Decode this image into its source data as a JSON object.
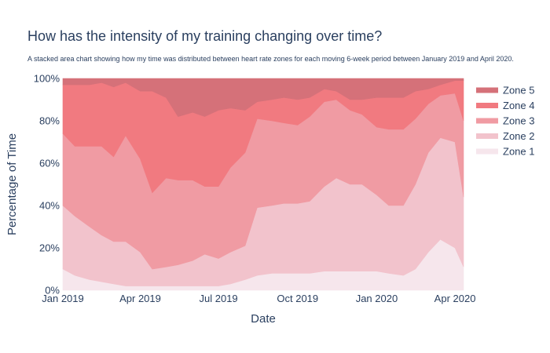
{
  "chart_data": {
    "type": "area",
    "stacked": true,
    "normalized_percent": true,
    "title": "How has the intensity of my training changing over time?",
    "subtitle": "A stacked area chart showing how my time was distributed between heart rate zones for each moving 6-week period between January 2019 and April 2020.",
    "xlabel": "Date",
    "ylabel": "Percentage of Time",
    "x_ticks": [
      "Jan 2019",
      "Apr 2019",
      "Jul 2019",
      "Oct 2019",
      "Jan 2020",
      "Apr 2020"
    ],
    "x_tick_dates": [
      "2019-01-01",
      "2019-04-01",
      "2019-07-01",
      "2019-10-01",
      "2020-01-01",
      "2020-04-01"
    ],
    "x_range": [
      "2019-01-01",
      "2020-04-11"
    ],
    "y_ticks": [
      "0%",
      "20%",
      "40%",
      "60%",
      "80%",
      "100%"
    ],
    "y_tick_values": [
      0,
      20,
      40,
      60,
      80,
      100
    ],
    "ylim": [
      0,
      100
    ],
    "legend_position": "right",
    "x": [
      "2019-01-01",
      "2019-01-15",
      "2019-02-01",
      "2019-02-15",
      "2019-03-01",
      "2019-03-15",
      "2019-04-01",
      "2019-04-15",
      "2019-05-01",
      "2019-05-15",
      "2019-06-01",
      "2019-06-15",
      "2019-07-01",
      "2019-07-15",
      "2019-08-01",
      "2019-08-15",
      "2019-09-01",
      "2019-09-15",
      "2019-10-01",
      "2019-10-15",
      "2019-11-01",
      "2019-11-15",
      "2019-12-01",
      "2019-12-15",
      "2020-01-01",
      "2020-01-15",
      "2020-02-01",
      "2020-02-15",
      "2020-03-01",
      "2020-03-15",
      "2020-04-01",
      "2020-04-11"
    ],
    "series": [
      {
        "name": "Zone 1",
        "color": "#f6e6ec",
        "values": [
          10,
          7,
          5,
          4,
          3,
          2,
          2,
          2,
          2,
          2,
          2,
          2,
          2,
          3,
          5,
          7,
          8,
          8,
          8,
          8,
          9,
          9,
          9,
          9,
          9,
          8,
          7,
          10,
          18,
          24,
          20,
          11
        ]
      },
      {
        "name": "Zone 2",
        "color": "#f2c3cc",
        "values": [
          30,
          28,
          25,
          22,
          20,
          21,
          16,
          8,
          9,
          10,
          12,
          15,
          13,
          15,
          16,
          32,
          32,
          33,
          33,
          34,
          40,
          44,
          41,
          41,
          36,
          32,
          33,
          40,
          47,
          48,
          50,
          33
        ]
      },
      {
        "name": "Zone 3",
        "color": "#f09ba3",
        "values": [
          34,
          33,
          38,
          42,
          40,
          50,
          44,
          36,
          42,
          40,
          38,
          32,
          34,
          40,
          44,
          42,
          40,
          38,
          37,
          40,
          40,
          37,
          35,
          33,
          32,
          36,
          36,
          31,
          23,
          20,
          23,
          36
        ]
      },
      {
        "name": "Zone 4",
        "color": "#f17a80",
        "values": [
          23,
          29,
          29,
          30,
          33,
          25,
          32,
          48,
          38,
          30,
          32,
          33,
          36,
          28,
          20,
          8,
          10,
          12,
          12,
          9,
          6,
          4,
          5,
          7,
          14,
          15,
          15,
          13,
          7,
          5,
          6,
          19
        ]
      },
      {
        "name": "Zone 5",
        "color": "#d57179",
        "values": [
          3,
          3,
          3,
          2,
          4,
          2,
          6,
          6,
          9,
          18,
          16,
          18,
          15,
          14,
          15,
          11,
          10,
          9,
          10,
          9,
          5,
          6,
          10,
          10,
          9,
          9,
          9,
          6,
          5,
          3,
          1,
          1
        ]
      }
    ]
  }
}
